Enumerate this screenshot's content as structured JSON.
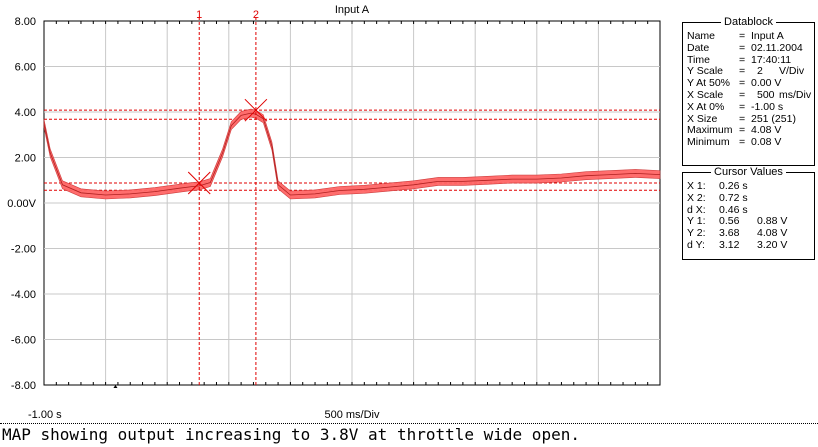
{
  "chart_data": {
    "type": "line",
    "title": "Input A",
    "y_ticks": [
      "8.00",
      "6.00",
      "4.00",
      "2.00",
      "0.00V",
      "-2.00",
      "-4.00",
      "-6.00",
      "-8.00"
    ],
    "x_left_label": "-1.00 s",
    "x_center_label": "500 ms/Div",
    "xlim": [
      -1.0,
      4.0
    ],
    "ylim": [
      -8,
      8
    ],
    "grid": true,
    "series": [
      {
        "color": "#ff6666",
        "x": [
          -1.0,
          -0.95,
          -0.85,
          -0.7,
          -0.5,
          -0.3,
          -0.1,
          0.1,
          0.2,
          0.26,
          0.35,
          0.45,
          0.52,
          0.6,
          0.68,
          0.72,
          0.78,
          0.85,
          0.9,
          1.0,
          1.2,
          1.4,
          1.6,
          1.8,
          2.0,
          2.2,
          2.4,
          2.6,
          2.8,
          3.0,
          3.2,
          3.4,
          3.6,
          3.8,
          4.0
        ],
        "y": [
          3.5,
          2.2,
          0.8,
          0.45,
          0.35,
          0.4,
          0.5,
          0.65,
          0.72,
          0.75,
          0.9,
          2.2,
          3.4,
          3.85,
          3.95,
          3.9,
          3.7,
          2.5,
          0.8,
          0.35,
          0.4,
          0.55,
          0.6,
          0.7,
          0.8,
          0.95,
          0.95,
          1.0,
          1.05,
          1.05,
          1.1,
          1.2,
          1.25,
          1.3,
          1.25
        ]
      }
    ],
    "cursors": [
      {
        "label": "1",
        "x": 0.26,
        "y": 0.88
      },
      {
        "label": "2",
        "x": 0.72,
        "y": 4.08
      }
    ],
    "y_cursor_lines": [
      0.56,
      0.88,
      3.68,
      4.08
    ]
  },
  "datablock": {
    "title": "Datablock",
    "rows": [
      {
        "k": "Name",
        "eq": "=",
        "v": "Input A",
        "u": ""
      },
      {
        "k": "Date",
        "eq": "=",
        "v": "02.11.2004",
        "u": ""
      },
      {
        "k": "Time",
        "eq": "=",
        "v": "17:40:11",
        "u": ""
      },
      {
        "k": "Y Scale",
        "eq": "=",
        "v": "2",
        "u": "V/Div"
      },
      {
        "k": "Y At 50%",
        "eq": "=",
        "v": "0.00 V",
        "u": ""
      },
      {
        "k": "X Scale",
        "eq": "=",
        "v": "500",
        "u": "ms/Div"
      },
      {
        "k": "X At 0%",
        "eq": "=",
        "v": "-1.00 s",
        "u": ""
      },
      {
        "k": "X Size",
        "eq": "=",
        "v": "251 (251)",
        "u": ""
      },
      {
        "k": "Maximum",
        "eq": "=",
        "v": "4.08 V",
        "u": ""
      },
      {
        "k": "Minimum",
        "eq": "=",
        "v": "0.08 V",
        "u": ""
      }
    ]
  },
  "cursor_values": {
    "title": "Cursor Values",
    "rows": [
      {
        "k": "X 1:",
        "a": "0.26 s",
        "b": ""
      },
      {
        "k": "X 2:",
        "a": "0.72 s",
        "b": ""
      },
      {
        "k": "d X:",
        "a": "0.46 s",
        "b": ""
      },
      {
        "k": "Y 1:",
        "a": "0.56",
        "b": "0.88 V"
      },
      {
        "k": "Y 2:",
        "a": "3.68",
        "b": "4.08 V"
      },
      {
        "k": "d Y:",
        "a": "3.12",
        "b": "3.20 V"
      }
    ]
  },
  "caption": "MAP showing output increasing to 3.8V at throttle wide open."
}
